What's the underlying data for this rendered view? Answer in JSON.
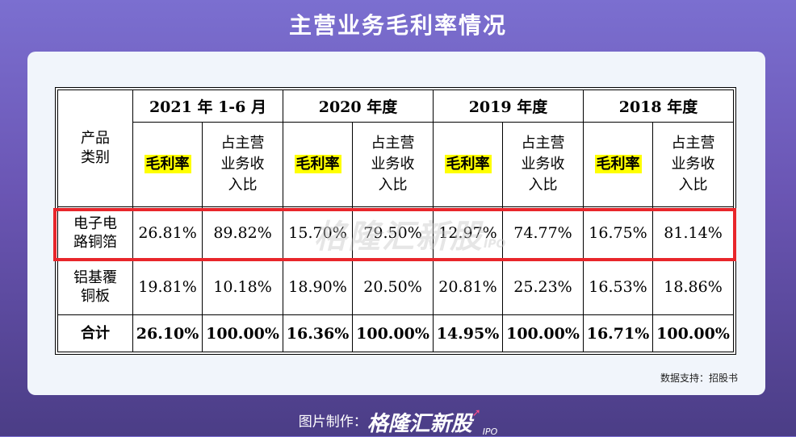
{
  "title": "主营业务毛利率情况",
  "table": {
    "category_header": "产品类别",
    "periods": [
      "2021 年 1-6 月",
      "2020 年度",
      "2019 年度",
      "2018 年度"
    ],
    "margin_label": "毛利率",
    "share_label": "占主营业务收入比",
    "rows": [
      {
        "category": "电子电路铜箔",
        "values": [
          "26.81%",
          "89.82%",
          "15.70%",
          "79.50%",
          "12.97%",
          "74.77%",
          "16.75%",
          "81.14%"
        ]
      },
      {
        "category": "铝基覆铜板",
        "values": [
          "19.81%",
          "10.18%",
          "18.90%",
          "20.50%",
          "20.81%",
          "25.23%",
          "16.53%",
          "18.86%"
        ]
      },
      {
        "category": "合计",
        "values": [
          "26.10%",
          "100.00%",
          "16.36%",
          "100.00%",
          "14.95%",
          "100.00%",
          "16.71%",
          "100.00%"
        ]
      }
    ]
  },
  "watermark": {
    "brand": "格隆汇新股",
    "suffix": "IPO"
  },
  "source": "数据支持：招股书",
  "footer": {
    "label": "图片制作：",
    "brand": "格隆汇新股",
    "suffix": "IPO"
  }
}
